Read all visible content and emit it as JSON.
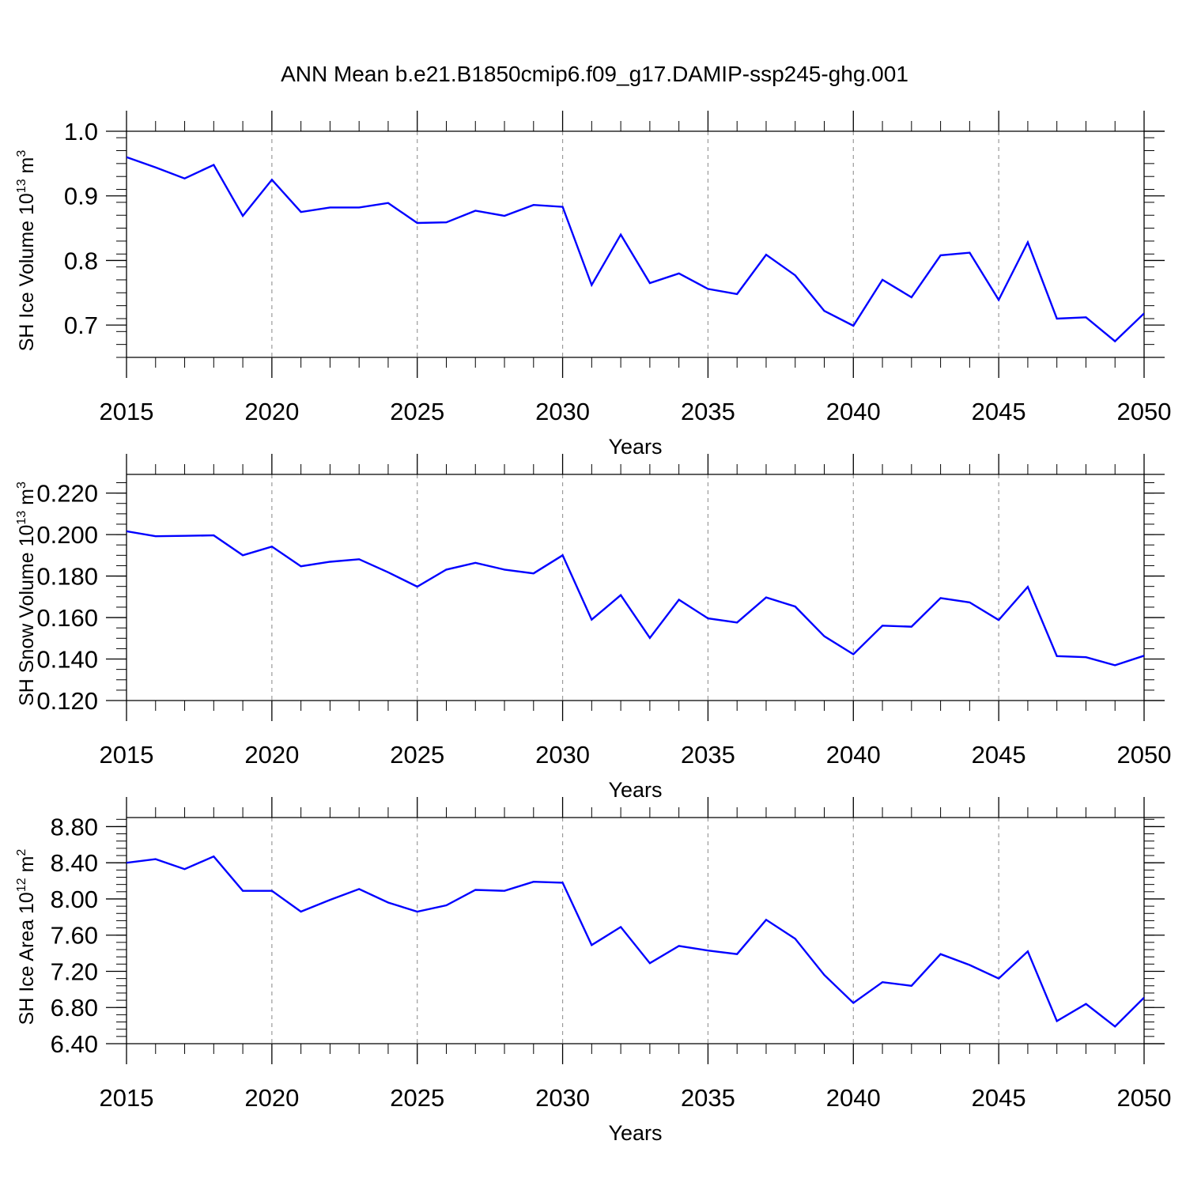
{
  "title": "ANN Mean b.e21.B1850cmip6.f09_g17.DAMIP-ssp245-ghg.001",
  "colors": {
    "series": "#0000ff",
    "axis": "#000000",
    "grid": "#9a9a9a"
  },
  "chart_data": [
    {
      "type": "line",
      "ylabel_main": "SH Ice Volume 10",
      "ylabel_exp": "13",
      "ylabel_unit": " m",
      "ylabel_unit_exp": "3",
      "xlabel": "Years",
      "xlim": [
        2015,
        2050
      ],
      "ylim": [
        0.65,
        1.0
      ],
      "y_ticks": [
        0.7,
        0.8,
        0.9,
        1.0
      ],
      "y_tick_labels": [
        "0.7",
        "0.8",
        "0.9",
        "1.0"
      ],
      "y_minor_step": 0.02,
      "x_ticks": [
        2015,
        2020,
        2025,
        2030,
        2035,
        2040,
        2045,
        2050
      ],
      "x_tick_labels": [
        "2015",
        "2020",
        "2025",
        "2030",
        "2035",
        "2040",
        "2045",
        "2050"
      ],
      "grid": "vertical-dashed",
      "x": [
        2015,
        2016,
        2017,
        2018,
        2019,
        2020,
        2021,
        2022,
        2023,
        2024,
        2025,
        2026,
        2027,
        2028,
        2029,
        2030,
        2031,
        2032,
        2033,
        2034,
        2035,
        2036,
        2037,
        2038,
        2039,
        2040,
        2041,
        2042,
        2043,
        2044,
        2045,
        2046,
        2047,
        2048,
        2049,
        2050
      ],
      "values": [
        0.96,
        0.944,
        0.927,
        0.948,
        0.869,
        0.925,
        0.875,
        0.882,
        0.882,
        0.889,
        0.858,
        0.859,
        0.877,
        0.869,
        0.886,
        0.883,
        0.762,
        0.84,
        0.765,
        0.78,
        0.756,
        0.748,
        0.809,
        0.777,
        0.722,
        0.699,
        0.77,
        0.743,
        0.808,
        0.812,
        0.739,
        0.828,
        0.71,
        0.712,
        0.675,
        0.718
      ]
    },
    {
      "type": "line",
      "ylabel_main": "SH Snow Volume 10",
      "ylabel_exp": "13",
      "ylabel_unit": " m",
      "ylabel_unit_exp": "3",
      "xlabel": "Years",
      "xlim": [
        2015,
        2050
      ],
      "ylim": [
        0.12,
        0.229
      ],
      "y_ticks": [
        0.12,
        0.14,
        0.16,
        0.18,
        0.2,
        0.22
      ],
      "y_tick_labels": [
        "0.120",
        "0.140",
        "0.160",
        "0.180",
        "0.200",
        "0.220"
      ],
      "y_minor_step": 0.005,
      "x_ticks": [
        2015,
        2020,
        2025,
        2030,
        2035,
        2040,
        2045,
        2050
      ],
      "x_tick_labels": [
        "2015",
        "2020",
        "2025",
        "2030",
        "2035",
        "2040",
        "2045",
        "2050"
      ],
      "grid": "vertical-dashed",
      "x": [
        2015,
        2016,
        2017,
        2018,
        2019,
        2020,
        2021,
        2022,
        2023,
        2024,
        2025,
        2026,
        2027,
        2028,
        2029,
        2030,
        2031,
        2032,
        2033,
        2034,
        2035,
        2036,
        2037,
        2038,
        2039,
        2040,
        2041,
        2042,
        2043,
        2044,
        2045,
        2046,
        2047,
        2048,
        2049,
        2050
      ],
      "values": [
        0.2016,
        0.1992,
        0.1994,
        0.1996,
        0.19,
        0.1942,
        0.1847,
        0.1869,
        0.1881,
        0.1818,
        0.1749,
        0.1831,
        0.1864,
        0.1831,
        0.1813,
        0.19,
        0.159,
        0.1708,
        0.1502,
        0.1686,
        0.1596,
        0.1576,
        0.1697,
        0.1653,
        0.151,
        0.1423,
        0.1561,
        0.1556,
        0.1694,
        0.1673,
        0.1588,
        0.1748,
        0.1414,
        0.1409,
        0.137,
        0.1416
      ]
    },
    {
      "type": "line",
      "ylabel_main": "SH Ice Area 10",
      "ylabel_exp": "12",
      "ylabel_unit": " m",
      "ylabel_unit_exp": "2",
      "xlabel": "Years",
      "xlim": [
        2015,
        2050
      ],
      "ylim": [
        6.4,
        8.9
      ],
      "y_ticks": [
        6.4,
        6.8,
        7.2,
        7.6,
        8.0,
        8.4,
        8.8
      ],
      "y_tick_labels": [
        "6.40",
        "6.80",
        "7.20",
        "7.60",
        "8.00",
        "8.40",
        "8.80"
      ],
      "y_minor_step": 0.08,
      "x_ticks": [
        2015,
        2020,
        2025,
        2030,
        2035,
        2040,
        2045,
        2050
      ],
      "x_tick_labels": [
        "2015",
        "2020",
        "2025",
        "2030",
        "2035",
        "2040",
        "2045",
        "2050"
      ],
      "grid": "vertical-dashed",
      "x": [
        2015,
        2016,
        2017,
        2018,
        2019,
        2020,
        2021,
        2022,
        2023,
        2024,
        2025,
        2026,
        2027,
        2028,
        2029,
        2030,
        2031,
        2032,
        2033,
        2034,
        2035,
        2036,
        2037,
        2038,
        2039,
        2040,
        2041,
        2042,
        2043,
        2044,
        2045,
        2046,
        2047,
        2048,
        2049,
        2050
      ],
      "values": [
        8.4,
        8.44,
        8.33,
        8.47,
        8.09,
        8.09,
        7.86,
        7.99,
        8.11,
        7.96,
        7.86,
        7.93,
        8.1,
        8.09,
        8.19,
        8.18,
        7.49,
        7.69,
        7.29,
        7.48,
        7.43,
        7.39,
        7.77,
        7.56,
        7.16,
        6.85,
        7.08,
        7.04,
        7.39,
        7.27,
        7.12,
        7.42,
        6.65,
        6.84,
        6.59,
        6.91
      ]
    }
  ]
}
